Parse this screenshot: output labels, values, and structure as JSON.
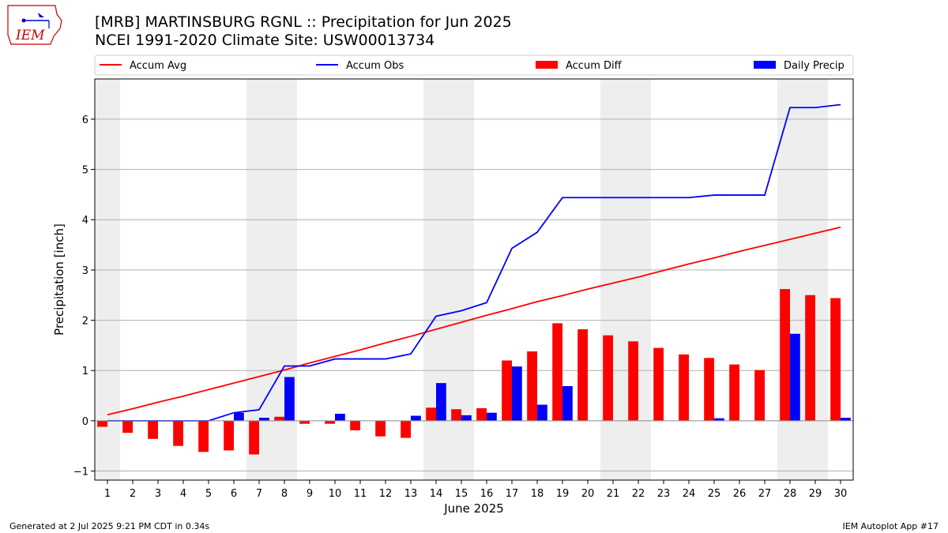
{
  "header": {
    "title": "[MRB] MARTINSBURG RGNL :: Precipitation for Jun 2025",
    "subtitle": "NCEI 1991-2020 Climate Site: USW00013734",
    "logo_text": "IEM"
  },
  "footer": {
    "left": "Generated at 2 Jul 2025 9:21 PM CDT in 0.34s",
    "right": "IEM Autoplot App #17"
  },
  "chart_data": {
    "type": "bar",
    "xlabel": "June 2025",
    "ylabel": "Precipitation [inch]",
    "ylim": [
      -1.18,
      6.8
    ],
    "xlim": [
      0.5,
      30.5
    ],
    "yticks": [
      -1,
      0,
      1,
      2,
      3,
      4,
      5,
      6
    ],
    "grid": true,
    "legend_position": "top",
    "x": [
      1,
      2,
      3,
      4,
      5,
      6,
      7,
      8,
      9,
      10,
      11,
      12,
      13,
      14,
      15,
      16,
      17,
      18,
      19,
      20,
      21,
      22,
      23,
      24,
      25,
      26,
      27,
      28,
      29,
      30
    ],
    "weekend_spans": [
      [
        0.5,
        1.5
      ],
      [
        6.5,
        8.5
      ],
      [
        13.5,
        15.5
      ],
      [
        20.5,
        22.5
      ],
      [
        27.5,
        29.5
      ]
    ],
    "series": [
      {
        "name": "Accum Avg",
        "kind": "line",
        "color": "#ff0000",
        "values": [
          0.12,
          0.24,
          0.37,
          0.49,
          0.62,
          0.75,
          0.88,
          1.01,
          1.15,
          1.28,
          1.41,
          1.55,
          1.68,
          1.82,
          1.96,
          2.1,
          2.23,
          2.37,
          2.49,
          2.62,
          2.74,
          2.86,
          2.99,
          3.12,
          3.24,
          3.37,
          3.49,
          3.61,
          3.73,
          3.85
        ]
      },
      {
        "name": "Accum Obs",
        "kind": "line",
        "color": "#0000ff",
        "values": [
          0,
          0,
          0,
          0,
          0,
          0.16,
          0.22,
          1.09,
          1.09,
          1.23,
          1.23,
          1.23,
          1.33,
          2.08,
          2.19,
          2.35,
          3.43,
          3.75,
          4.44,
          4.44,
          4.44,
          4.44,
          4.44,
          4.44,
          4.49,
          4.49,
          4.49,
          6.23,
          6.23,
          6.29
        ]
      },
      {
        "name": "Accum Diff",
        "kind": "bar",
        "color": "#ff0000",
        "values": [
          -0.12,
          -0.24,
          -0.36,
          -0.5,
          -0.62,
          -0.59,
          -0.67,
          0.08,
          -0.06,
          -0.06,
          -0.19,
          -0.31,
          -0.34,
          0.26,
          0.23,
          0.25,
          1.2,
          1.38,
          1.94,
          1.82,
          1.7,
          1.58,
          1.45,
          1.32,
          1.25,
          1.12,
          1.01,
          2.62,
          2.5,
          2.44
        ]
      },
      {
        "name": "Daily Precip",
        "kind": "bar",
        "color": "#0000ff",
        "values": [
          0,
          0,
          0,
          0,
          0,
          0.16,
          0.06,
          0.87,
          0,
          0.14,
          0,
          0,
          0.1,
          0.75,
          0.11,
          0.16,
          1.08,
          0.32,
          0.69,
          0,
          0,
          0,
          0,
          0,
          0.05,
          0,
          0,
          1.73,
          0,
          0.06
        ]
      }
    ]
  }
}
